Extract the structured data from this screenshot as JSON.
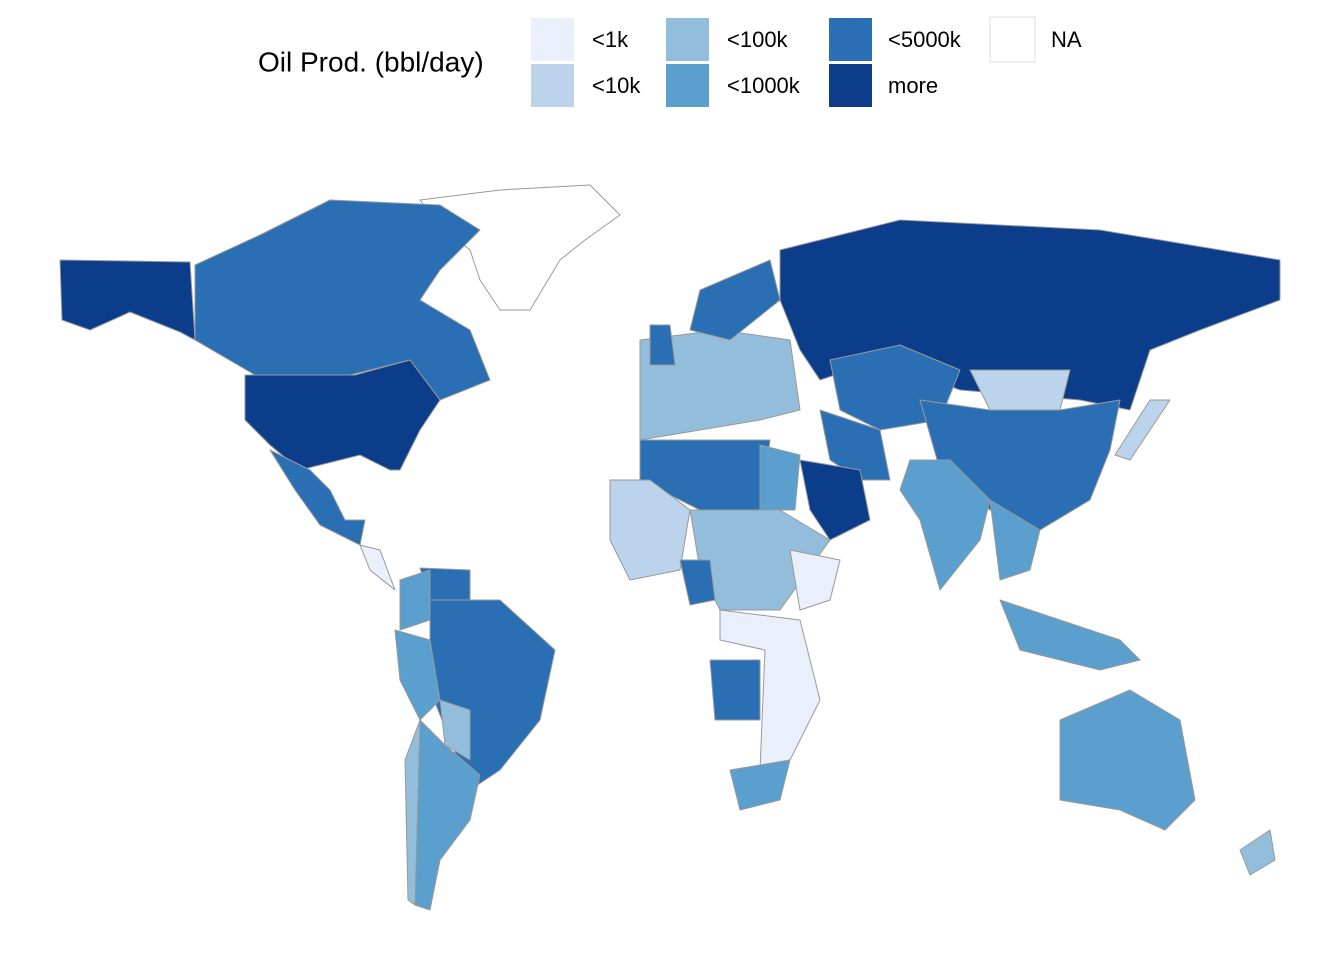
{
  "legend": {
    "title": "Oil Prod. (bbl/day)",
    "items": [
      {
        "label": "<1k",
        "color": "#eaf0fb"
      },
      {
        "label": "<10k",
        "color": "#bcd3ec"
      },
      {
        "label": "<100k",
        "color": "#92bedc"
      },
      {
        "label": "<1000k",
        "color": "#5a9fcd"
      },
      {
        "label": "<5000k",
        "color": "#2a6eb3"
      },
      {
        "label": "more",
        "color": "#0c3d8a"
      },
      {
        "label": "NA",
        "color": "#ffffff"
      }
    ]
  }
}
